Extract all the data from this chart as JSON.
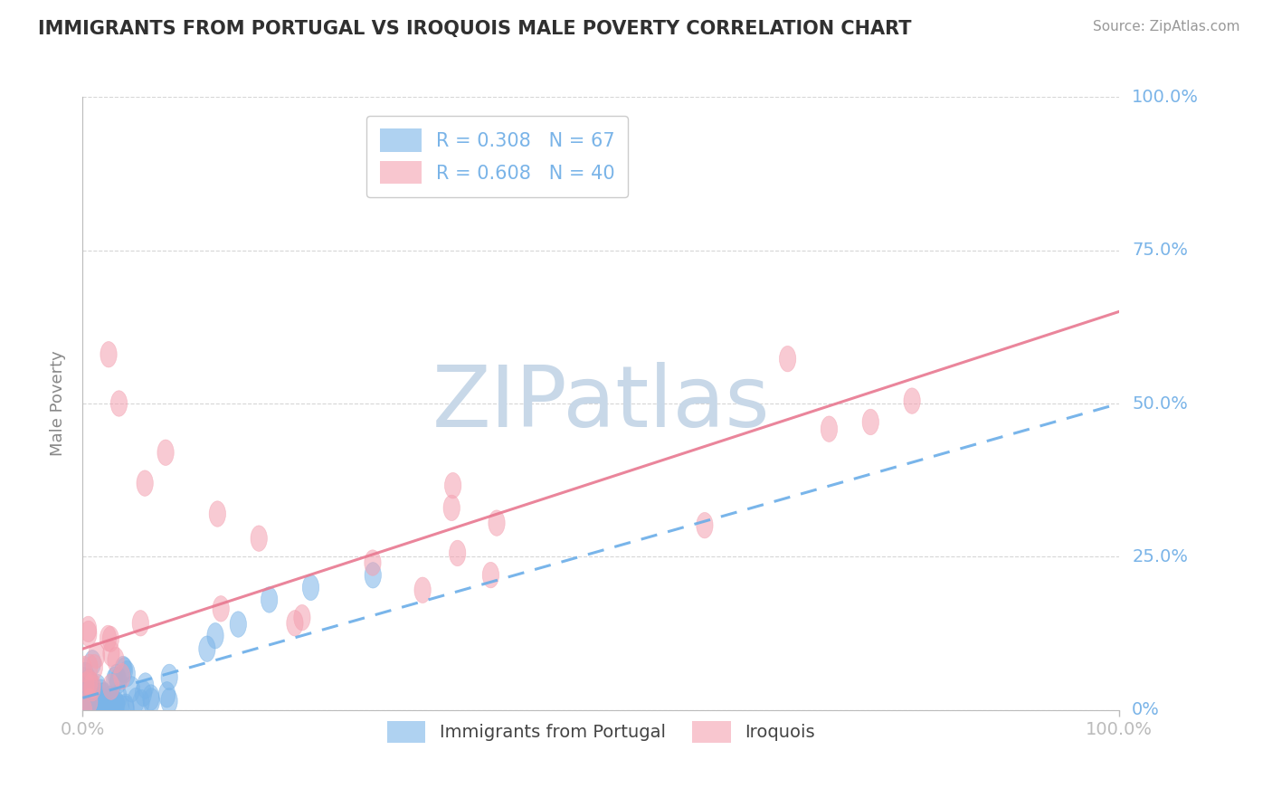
{
  "title": "IMMIGRANTS FROM PORTUGAL VS IROQUOIS MALE POVERTY CORRELATION CHART",
  "source_text": "Source: ZipAtlas.com",
  "ylabel": "Male Poverty",
  "watermark": "ZIPatlas",
  "series1_color": "#7ab4e8",
  "series2_color": "#f4a0b0",
  "trend1_color": "#6aade8",
  "trend2_color": "#e87890",
  "title_color": "#303030",
  "tick_label_color": "#7ab4e8",
  "grid_color": "#cccccc",
  "background_color": "#ffffff",
  "watermark_color": "#c8d8e8",
  "legend1_label": "R = 0.308   N = 67",
  "legend2_label": "R = 0.608   N = 40",
  "bottom_legend1": "Immigrants from Portugal",
  "bottom_legend2": "Iroquois",
  "blue_trend_start_x": 0.0,
  "blue_trend_start_y": 0.02,
  "blue_trend_end_x": 1.0,
  "blue_trend_end_y": 0.5,
  "pink_trend_start_x": 0.0,
  "pink_trend_start_y": 0.1,
  "pink_trend_end_x": 1.0,
  "pink_trend_end_y": 0.65,
  "xlim": [
    0,
    1
  ],
  "ylim": [
    0,
    1
  ],
  "yticks": [
    0,
    0.25,
    0.5,
    0.75,
    1.0
  ],
  "ytick_labels_right": [
    "0%",
    "25.0%",
    "50.0%",
    "75.0%",
    "100.0%"
  ]
}
